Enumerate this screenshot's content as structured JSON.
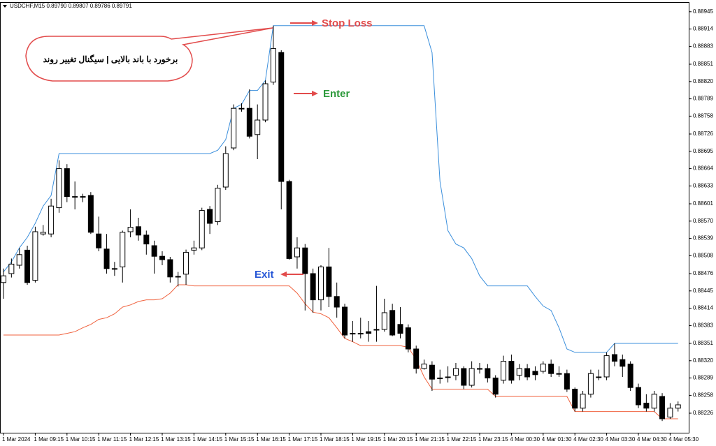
{
  "chart_data": {
    "type": "candlestick",
    "title": "USDCHF,M15  0.89790 0.89807 0.89786 0.89791",
    "categories": [
      "1 Mar 2024",
      null,
      null,
      null,
      "1 Mar 09:15",
      null,
      null,
      null,
      "1 Mar 10:15",
      null,
      null,
      null,
      "1 Mar 11:15",
      null,
      null,
      null,
      "1 Mar 12:15",
      null,
      null,
      null,
      "1 Mar 13:15",
      null,
      null,
      null,
      "1 Mar 14:15",
      null,
      null,
      null,
      "1 Mar 15:15",
      null,
      null,
      null,
      "1 Mar 16:15",
      null,
      null,
      null,
      "1 Mar 17:15",
      null,
      null,
      null,
      "1 Mar 18:15",
      null,
      null,
      null,
      "1 Mar 19:15",
      null,
      null,
      null,
      "1 Mar 20:15",
      null,
      null,
      null,
      "1 Mar 21:15",
      null,
      null,
      null,
      "1 Mar 22:15",
      null,
      null,
      null,
      "1 Mar 23:15",
      null,
      null,
      null,
      "4 Mar 00:30",
      null,
      null,
      null,
      "4 Mar 01:30",
      null,
      null,
      null,
      "4 Mar 02:30",
      null,
      null,
      null,
      "4 Mar 03:30",
      null,
      null,
      null,
      "4 Mar 04:30",
      null,
      null,
      null,
      "4 Mar 05:30",
      null
    ],
    "open": [
      0.8846,
      0.88476,
      0.88491,
      0.88518,
      0.88464,
      0.88547,
      0.88547,
      0.88594,
      0.88664,
      0.88614,
      0.88614,
      0.88616,
      0.88547,
      0.8852,
      0.88485,
      0.88488,
      0.88551,
      0.8856,
      0.88545,
      0.88526,
      0.88507,
      0.88501,
      0.88471,
      0.88475,
      0.88518,
      0.88522,
      0.88591,
      0.88569,
      0.88631,
      0.88701,
      0.88772,
      0.88772,
      0.88725,
      0.88751,
      0.88819,
      0.88872,
      0.88641,
      0.88506,
      0.88522,
      0.88476,
      0.88429,
      0.88488,
      0.88435,
      0.88416,
      0.88369,
      0.88369,
      0.88372,
      0.88376,
      0.88376,
      0.8841,
      0.88385,
      0.88379,
      0.88341,
      0.88306,
      0.88312,
      0.88289,
      0.88291,
      0.88294,
      0.88306,
      0.88276,
      0.88306,
      0.88306,
      0.88289,
      0.88285,
      0.88319,
      0.88294,
      0.88306,
      0.88301,
      0.88301,
      0.88314,
      0.88297,
      0.88297,
      0.88269,
      0.88235,
      0.8826,
      0.88291,
      0.88291,
      0.88331,
      0.88322,
      0.88314,
      0.88272,
      0.88244,
      0.88235,
      0.88256,
      0.88219,
      0.88235
    ],
    "high": [
      0.88485,
      0.88503,
      0.88522,
      0.88526,
      0.8856,
      0.88563,
      0.8861,
      0.88679,
      0.88672,
      0.88641,
      0.88619,
      0.88622,
      0.88578,
      0.88547,
      0.88497,
      0.88553,
      0.88591,
      0.88576,
      0.88553,
      0.88535,
      0.88516,
      0.88506,
      0.88479,
      0.88519,
      0.88535,
      0.88594,
      0.88597,
      0.88635,
      0.88704,
      0.88779,
      0.88781,
      0.88806,
      0.88779,
      0.88822,
      0.8892,
      0.88876,
      0.88644,
      0.88541,
      0.88529,
      0.88485,
      0.88491,
      0.88522,
      0.8846,
      0.88422,
      0.88391,
      0.88397,
      0.88391,
      0.88454,
      0.88431,
      0.88422,
      0.88416,
      0.88385,
      0.88347,
      0.88322,
      0.88319,
      0.88304,
      0.8831,
      0.88316,
      0.8831,
      0.88319,
      0.88316,
      0.88314,
      0.88294,
      0.88329,
      0.88331,
      0.88314,
      0.88314,
      0.8831,
      0.88319,
      0.88322,
      0.8831,
      0.88304,
      0.88272,
      0.88266,
      0.88304,
      0.88304,
      0.88335,
      0.88351,
      0.88331,
      0.88319,
      0.88279,
      0.8826,
      0.88266,
      0.88262,
      0.88244,
      0.88247
    ],
    "low": [
      0.88431,
      0.88469,
      0.88485,
      0.88456,
      0.8846,
      0.88544,
      0.88541,
      0.88585,
      0.88604,
      0.88591,
      0.88604,
      0.88547,
      0.88516,
      0.88476,
      0.88472,
      0.8846,
      0.88541,
      0.88535,
      0.8851,
      0.88476,
      0.88491,
      0.8846,
      0.88453,
      0.88456,
      0.8851,
      0.88518,
      0.88547,
      0.88563,
      0.88626,
      0.88697,
      0.88766,
      0.88718,
      0.88681,
      0.88747,
      0.88814,
      0.88591,
      0.88501,
      0.88485,
      0.8841,
      0.88406,
      0.8841,
      0.88416,
      0.88397,
      0.8836,
      0.88354,
      0.8836,
      0.88354,
      0.88354,
      0.88372,
      0.88364,
      0.8836,
      0.88335,
      0.88297,
      0.88304,
      0.88266,
      0.88279,
      0.88281,
      0.88285,
      0.88269,
      0.88272,
      0.88297,
      0.88281,
      0.88254,
      0.88279,
      0.88279,
      0.88285,
      0.88285,
      0.88285,
      0.88297,
      0.88291,
      0.88291,
      0.88264,
      0.88229,
      0.88229,
      0.88254,
      0.88285,
      0.88285,
      0.8831,
      0.88291,
      0.88266,
      0.88235,
      0.88229,
      0.88229,
      0.88212,
      0.88216,
      0.88229
    ],
    "close": [
      0.88472,
      0.88493,
      0.8851,
      0.8846,
      0.88551,
      0.8855,
      0.88597,
      0.88664,
      0.88614,
      0.88614,
      0.88614,
      0.8855,
      0.88522,
      0.88485,
      0.88485,
      0.8855,
      0.88559,
      0.88545,
      0.88529,
      0.88507,
      0.88501,
      0.8847,
      0.88471,
      0.88514,
      0.88522,
      0.88589,
      0.88566,
      0.88629,
      0.88691,
      0.88772,
      0.88772,
      0.88722,
      0.88751,
      0.88816,
      0.88879,
      0.88641,
      0.88503,
      0.88522,
      0.88476,
      0.88429,
      0.88488,
      0.88435,
      0.88416,
      0.88366,
      0.88369,
      0.88369,
      0.88369,
      0.88376,
      0.88406,
      0.88366,
      0.88369,
      0.88341,
      0.88306,
      0.88314,
      0.88287,
      0.88289,
      0.88291,
      0.88306,
      0.88276,
      0.88306,
      0.88306,
      0.88289,
      0.8826,
      0.88319,
      0.88285,
      0.88306,
      0.88291,
      0.88295,
      0.88314,
      0.88297,
      0.88297,
      0.88269,
      0.88235,
      0.8826,
      0.88297,
      0.88291,
      0.88329,
      0.88319,
      0.8831,
      0.88272,
      0.88241,
      0.88235,
      0.8826,
      0.88216,
      0.88235,
      0.88241
    ],
    "up_color": "#ffffff",
    "down_color": "#000000",
    "series": [
      {
        "color": "#3b8fdc",
        "values": [
          0.88479,
          0.88497,
          0.88522,
          0.88541,
          0.88566,
          0.88597,
          0.88616,
          0.88691,
          0.88691,
          0.88691,
          0.88691,
          0.88691,
          0.88691,
          0.88691,
          0.88691,
          0.88691,
          0.88691,
          0.88691,
          0.88691,
          0.88691,
          0.88691,
          0.88691,
          0.88691,
          0.88691,
          0.88691,
          0.88691,
          0.88691,
          0.88697,
          0.88716,
          0.88772,
          0.88779,
          0.88804,
          0.88804,
          0.88822,
          0.8892,
          0.8892,
          0.8892,
          0.8892,
          0.8892,
          0.8892,
          0.8892,
          0.8892,
          0.8892,
          0.8892,
          0.8892,
          0.8892,
          0.8892,
          0.8892,
          0.8892,
          0.8892,
          0.8892,
          0.8892,
          0.8892,
          0.8892,
          0.88872,
          0.88641,
          0.88553,
          0.88529,
          0.88522,
          0.88503,
          0.88472,
          0.88454,
          0.88454,
          0.88454,
          0.88454,
          0.88454,
          0.88454,
          0.88435,
          0.88418,
          0.8841,
          0.88379,
          0.88341,
          0.88335,
          0.88335,
          0.88335,
          0.88335,
          0.88335,
          0.88351,
          0.88351,
          0.88351,
          0.88351,
          0.88351,
          0.88351,
          0.88351,
          0.88351,
          0.88351
        ]
      },
      {
        "color": "#f0623e",
        "values": [
          0.88366,
          0.88366,
          0.88366,
          0.88366,
          0.88366,
          0.88366,
          0.88366,
          0.88366,
          0.88369,
          0.88372,
          0.88379,
          0.88385,
          0.88394,
          0.88397,
          0.88404,
          0.88416,
          0.8842,
          0.88426,
          0.88429,
          0.88429,
          0.88431,
          0.88441,
          0.88456,
          0.88456,
          0.88454,
          0.88454,
          0.88454,
          0.88454,
          0.88454,
          0.88454,
          0.88454,
          0.88454,
          0.88454,
          0.88454,
          0.88454,
          0.88454,
          0.88454,
          0.88441,
          0.88422,
          0.88407,
          0.88404,
          0.88397,
          0.88379,
          0.8836,
          0.88354,
          0.88347,
          0.88347,
          0.88347,
          0.88347,
          0.88347,
          0.88347,
          0.88344,
          0.88322,
          0.88291,
          0.88269,
          0.88269,
          0.88269,
          0.88269,
          0.88269,
          0.88269,
          0.88269,
          0.88269,
          0.88256,
          0.88256,
          0.88256,
          0.88256,
          0.88256,
          0.88256,
          0.88256,
          0.88256,
          0.88256,
          0.88256,
          0.88229,
          0.88229,
          0.88229,
          0.88229,
          0.88229,
          0.88229,
          0.88229,
          0.88229,
          0.88229,
          0.88229,
          0.88229,
          0.88216,
          0.88216,
          0.88216
        ]
      }
    ],
    "ylim": [
      0.88191,
      0.88961
    ],
    "yticks": [
      0.88945,
      0.88914,
      0.88883,
      0.88851,
      {
        "value": 0.8882,
        "label": "0.88820"
      },
      0.88789,
      0.88758,
      0.88726,
      0.88695,
      0.88664,
      0.88633,
      0.88601,
      {
        "value": 0.8857,
        "label": "0.88570"
      },
      0.88539,
      0.88508,
      0.88476,
      0.88445,
      0.88414,
      0.88383,
      0.88351,
      {
        "value": 0.8832,
        "label": "0.88320"
      },
      0.88289,
      0.88258,
      0.88226
    ],
    "annotations": {
      "callout": "برخورد با باند بالایی | سیگنال تغییر روند",
      "stop_loss": "Stop Loss",
      "enter": "Enter",
      "exit": "Exit"
    }
  }
}
